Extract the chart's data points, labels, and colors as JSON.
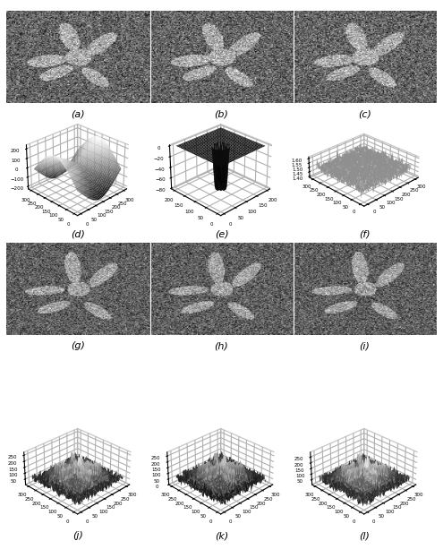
{
  "labels": [
    "(a)",
    "(b)",
    "(c)",
    "(d)",
    "(e)",
    "(f)",
    "(g)",
    "(h)",
    "(i)",
    "(j)",
    "(k)",
    "(l)"
  ],
  "bg_color": "#ffffff",
  "label_fontsize": 8,
  "panel_bg": "#cccccc",
  "noise_mean": 100,
  "noise_std": 38,
  "shape_brightness": 75,
  "shape_mean_row3": 95,
  "noise_std_row3": 32
}
